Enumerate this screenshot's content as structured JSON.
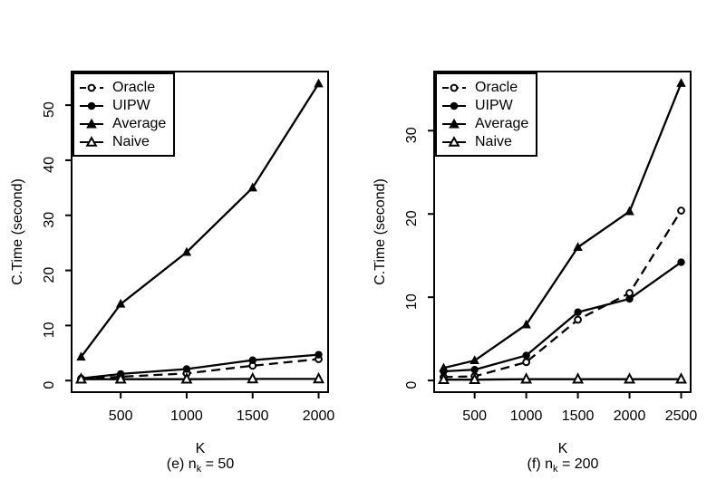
{
  "figure": {
    "background": "#ffffff",
    "foreground": "#000000"
  },
  "chart_data": [
    {
      "id": "e",
      "type": "line",
      "xlabel": "K",
      "ylabel": "C.Time (second)",
      "caption": {
        "prefix": "(e) n",
        "sub": "k",
        "suffix": " = 50"
      },
      "x": [
        200,
        500,
        1000,
        1500,
        2000
      ],
      "x_ticks": [
        500,
        1000,
        1500,
        2000
      ],
      "y_ticks": [
        0,
        10,
        20,
        30,
        40,
        50
      ],
      "xlim": [
        128,
        2072
      ],
      "ylim": [
        -2.1,
        56.1
      ],
      "grid": false,
      "legend_position": "topleft",
      "series": [
        {
          "name": "Oracle",
          "marker": "circle-open",
          "line": "dashed",
          "values": [
            0.3,
            0.7,
            1.3,
            2.7,
            3.9
          ]
        },
        {
          "name": "UIPW",
          "marker": "circle-filled",
          "line": "solid",
          "values": [
            0.4,
            1.2,
            2.1,
            3.7,
            4.7
          ]
        },
        {
          "name": "Average",
          "marker": "triangle-filled",
          "line": "solid",
          "values": [
            4.3,
            13.9,
            23.3,
            35.0,
            53.9
          ]
        },
        {
          "name": "Naive",
          "marker": "triangle-open",
          "line": "solid",
          "values": [
            0.25,
            0.25,
            0.25,
            0.3,
            0.3
          ]
        }
      ]
    },
    {
      "id": "f",
      "type": "line",
      "xlabel": "K",
      "ylabel": "C.Time (second)",
      "caption": {
        "prefix": "(f) n",
        "sub": "k",
        "suffix": " = 200"
      },
      "x": [
        200,
        500,
        1000,
        1500,
        2000,
        2500
      ],
      "x_ticks": [
        500,
        1000,
        1500,
        2000,
        2500
      ],
      "y_ticks": [
        0,
        10,
        20,
        30
      ],
      "xlim": [
        108,
        2592
      ],
      "ylim": [
        -1.4,
        37.1
      ],
      "grid": false,
      "legend_position": "topleft",
      "series": [
        {
          "name": "Oracle",
          "marker": "circle-open",
          "line": "dashed",
          "values": [
            0.4,
            0.5,
            2.2,
            7.3,
            10.5,
            20.4
          ]
        },
        {
          "name": "UIPW",
          "marker": "circle-filled",
          "line": "solid",
          "values": [
            1.1,
            1.3,
            3.0,
            8.2,
            9.8,
            14.2
          ]
        },
        {
          "name": "Average",
          "marker": "triangle-filled",
          "line": "solid",
          "values": [
            1.5,
            2.4,
            6.7,
            16.0,
            20.3,
            35.7
          ]
        },
        {
          "name": "Naive",
          "marker": "triangle-open",
          "line": "solid",
          "values": [
            0.1,
            0.1,
            0.15,
            0.15,
            0.15,
            0.15
          ]
        }
      ]
    }
  ]
}
